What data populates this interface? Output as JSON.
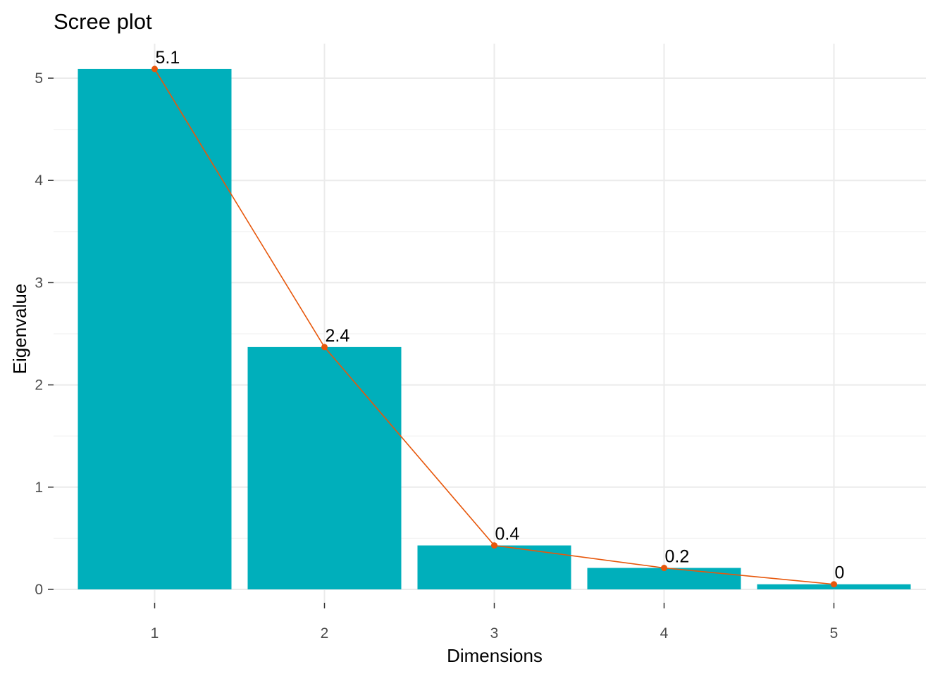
{
  "chart_data": {
    "type": "bar",
    "title": "Scree plot",
    "xlabel": "Dimensions",
    "ylabel": "Eigenvalue",
    "categories": [
      "1",
      "2",
      "3",
      "4",
      "5"
    ],
    "values": [
      5.09,
      2.37,
      0.43,
      0.21,
      0.05
    ],
    "data_labels": [
      "5.1",
      "2.4",
      "0.4",
      "0.2",
      "0"
    ],
    "ylim": [
      0,
      5.2
    ],
    "yticks": [
      0,
      1,
      2,
      3,
      4,
      5
    ],
    "grid": true,
    "legend": "none",
    "overlay_line": true,
    "colors": {
      "bar": "#00AFBB",
      "line": "#E7570B",
      "point": "#E7570B"
    }
  }
}
